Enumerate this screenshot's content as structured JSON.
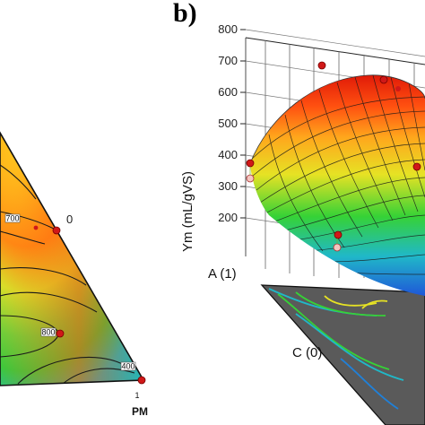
{
  "panel_b_label": "b)",
  "chart_data": [
    {
      "type": "heatmap",
      "subtype": "ternary contour plot (cropped)",
      "vertex_labels": {
        "pm": "PM",
        "pm_tick_one": "1",
        "pm_tick_zero": "0"
      },
      "contour_labels": [
        "700",
        "800",
        "400"
      ],
      "design_points": 4,
      "colorscale": [
        "#1464d2",
        "#22b8b8",
        "#3cc83c",
        "#d8e02a",
        "#ffa21a",
        "#ff4a10",
        "#e01808"
      ]
    },
    {
      "type": "heatmap",
      "subtype": "3D response surface",
      "zlabel": "Ym (mL/gVS)",
      "z_ticks": [
        200,
        300,
        400,
        500,
        600,
        700,
        800
      ],
      "zlim": [
        100,
        800
      ],
      "axis_labels": {
        "a": "A (1)",
        "c": "C (0)"
      },
      "surface_peak": 730,
      "design_points": 7,
      "colorscale": [
        "#1f57d8",
        "#20b8c8",
        "#36d236",
        "#e6e224",
        "#ffa61c",
        "#ff5010",
        "#e01a08"
      ]
    }
  ]
}
